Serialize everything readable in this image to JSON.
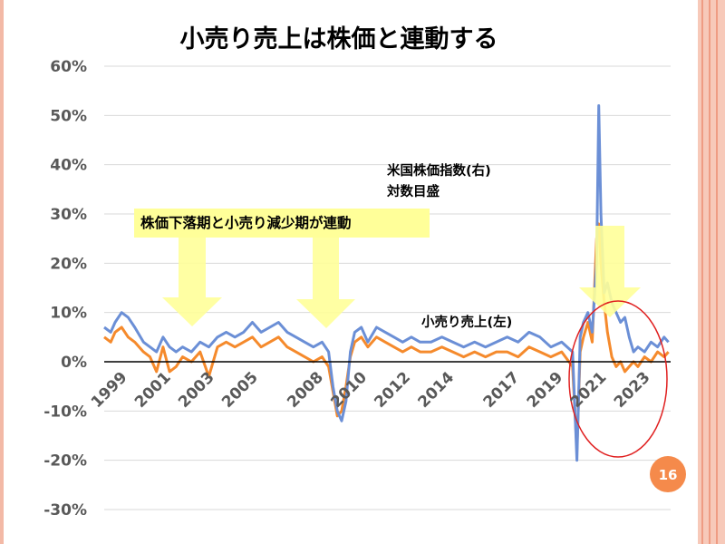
{
  "slide": {
    "title": "小売り売上は株価と連動する",
    "page_number": "16",
    "colors": {
      "border": "#f7c9b9",
      "badge": "#f58a4b"
    }
  },
  "annotations": {
    "stock_label_line1": "米国株価指数(右)",
    "stock_label_line2": "対数目盛",
    "retail_label": "小売り売上(左)",
    "banner_text": "株価下落期と小売り減少期が連動",
    "arrow_color": "#ffff99",
    "ellipse_color": "#e02020"
  },
  "chart_data": {
    "type": "line",
    "title": "小売り売上は株価と連動する",
    "xlabel": "",
    "ylabel": "",
    "ylim": [
      -30,
      60
    ],
    "yticks": [
      "60%",
      "50%",
      "40%",
      "30%",
      "20%",
      "10%",
      "0%",
      "-10%",
      "-20%",
      "-30%"
    ],
    "xticks": [
      "1999",
      "2001",
      "2003",
      "2005",
      "2008",
      "2010",
      "2012",
      "2014",
      "2017",
      "2019",
      "2021",
      "2023"
    ],
    "xtick_positions": [
      1999,
      2001,
      2003,
      2005,
      2008,
      2010,
      2012,
      2014,
      2017,
      2019,
      2021,
      2023
    ],
    "xlim": [
      1998.5,
      2024.5
    ],
    "grid": true,
    "series": [
      {
        "name": "米国株価指数(右)",
        "color": "#6b8fd6",
        "x": [
          1998.5,
          1998.8,
          1999.0,
          1999.3,
          1999.6,
          1999.9,
          2000.3,
          2000.6,
          2000.9,
          2001.2,
          2001.5,
          2001.8,
          2002.1,
          2002.5,
          2002.9,
          2003.3,
          2003.7,
          2004.1,
          2004.5,
          2004.9,
          2005.3,
          2005.7,
          2006.1,
          2006.5,
          2006.9,
          2007.3,
          2007.7,
          2008.1,
          2008.5,
          2008.8,
          2009.0,
          2009.2,
          2009.4,
          2009.6,
          2009.8,
          2010.0,
          2010.3,
          2010.6,
          2011.0,
          2011.4,
          2011.8,
          2012.2,
          2012.6,
          2013.0,
          2013.5,
          2014.0,
          2014.5,
          2015.0,
          2015.5,
          2016.0,
          2016.5,
          2017.0,
          2017.5,
          2018.0,
          2018.5,
          2019.0,
          2019.5,
          2020.0,
          2020.2,
          2020.35,
          2020.5,
          2020.7,
          2020.9,
          2021.1,
          2021.2,
          2021.3,
          2021.45,
          2021.6,
          2021.8,
          2022.0,
          2022.2,
          2022.4,
          2022.6,
          2022.8,
          2023.0,
          2023.3,
          2023.6,
          2023.9,
          2024.2,
          2024.4
        ],
        "values": [
          7,
          6,
          8,
          10,
          9,
          7,
          4,
          3,
          2,
          5,
          3,
          2,
          3,
          2,
          4,
          3,
          5,
          6,
          5,
          6,
          8,
          6,
          7,
          8,
          6,
          5,
          4,
          3,
          4,
          2,
          -5,
          -10,
          -12,
          -8,
          2,
          6,
          7,
          4,
          7,
          6,
          5,
          4,
          5,
          4,
          4,
          5,
          4,
          3,
          4,
          3,
          4,
          5,
          4,
          6,
          5,
          3,
          4,
          2,
          -20,
          5,
          8,
          10,
          6,
          20,
          52,
          30,
          14,
          16,
          12,
          10,
          8,
          9,
          5,
          2,
          3,
          2,
          4,
          3,
          5,
          4
        ]
      },
      {
        "name": "小売り売上(左)",
        "color": "#f58a2c",
        "x": [
          1998.5,
          1998.8,
          1999.0,
          1999.3,
          1999.6,
          1999.9,
          2000.3,
          2000.6,
          2000.9,
          2001.2,
          2001.5,
          2001.8,
          2002.1,
          2002.5,
          2002.9,
          2003.3,
          2003.7,
          2004.1,
          2004.5,
          2004.9,
          2005.3,
          2005.7,
          2006.1,
          2006.5,
          2006.9,
          2007.3,
          2007.7,
          2008.1,
          2008.5,
          2008.8,
          2009.0,
          2009.2,
          2009.4,
          2009.6,
          2009.8,
          2010.0,
          2010.3,
          2010.6,
          2011.0,
          2011.4,
          2011.8,
          2012.2,
          2012.6,
          2013.0,
          2013.5,
          2014.0,
          2014.5,
          2015.0,
          2015.5,
          2016.0,
          2016.5,
          2017.0,
          2017.5,
          2018.0,
          2018.5,
          2019.0,
          2019.5,
          2020.0,
          2020.2,
          2020.35,
          2020.5,
          2020.7,
          2020.9,
          2021.1,
          2021.2,
          2021.3,
          2021.45,
          2021.6,
          2021.8,
          2022.0,
          2022.2,
          2022.4,
          2022.6,
          2022.8,
          2023.0,
          2023.3,
          2023.6,
          2023.9,
          2024.2,
          2024.4
        ],
        "values": [
          5,
          4,
          6,
          7,
          5,
          4,
          2,
          1,
          -2,
          3,
          -2,
          -1,
          1,
          0,
          2,
          -3,
          3,
          4,
          3,
          4,
          5,
          3,
          4,
          5,
          3,
          2,
          1,
          0,
          1,
          -1,
          -6,
          -11,
          -10,
          -5,
          1,
          4,
          5,
          3,
          5,
          4,
          3,
          2,
          3,
          2,
          2,
          3,
          2,
          1,
          2,
          1,
          2,
          2,
          1,
          3,
          2,
          1,
          2,
          -1,
          -18,
          2,
          5,
          8,
          4,
          25,
          28,
          20,
          12,
          6,
          1,
          -1,
          0,
          -2,
          -1,
          0,
          -1,
          1,
          0,
          2,
          1,
          2
        ]
      }
    ]
  }
}
